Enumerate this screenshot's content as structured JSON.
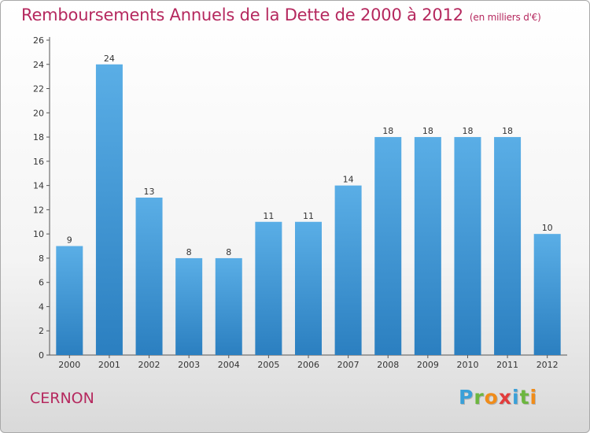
{
  "header": {
    "title": "Remboursements Annuels de la Dette de 2000 à 2012",
    "unit": "(en milliers d'€)"
  },
  "footer": {
    "commune": "CERNON",
    "logo": [
      {
        "ch": "P",
        "color": "#3aa0d8"
      },
      {
        "ch": "r",
        "color": "#6cb63f"
      },
      {
        "ch": "o",
        "color": "#f08c1a"
      },
      {
        "ch": "x",
        "color": "#e23c3c"
      },
      {
        "ch": "i",
        "color": "#3aa0d8"
      },
      {
        "ch": "t",
        "color": "#6cb63f"
      },
      {
        "ch": "i",
        "color": "#f08c1a"
      }
    ]
  },
  "colors": {
    "bar_light": "#5aaee6",
    "bar_dark": "#2b7fc0",
    "accent": "#b5285e"
  },
  "chart_data": {
    "type": "bar",
    "title": "Remboursements Annuels de la Dette de 2000 à 2012",
    "categories": [
      "2000",
      "2001",
      "2002",
      "2003",
      "2004",
      "2005",
      "2006",
      "2007",
      "2008",
      "2009",
      "2010",
      "2011",
      "2012"
    ],
    "values": [
      9,
      24,
      13,
      8,
      8,
      11,
      11,
      14,
      18,
      18,
      18,
      18,
      10
    ],
    "yticks": [
      0,
      2,
      4,
      6,
      8,
      10,
      12,
      14,
      16,
      18,
      20,
      22,
      24,
      26
    ],
    "ylim": [
      0,
      26
    ],
    "grid": false,
    "data_labels": true
  }
}
